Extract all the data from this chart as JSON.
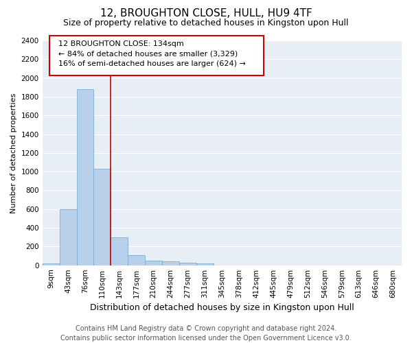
{
  "title": "12, BROUGHTON CLOSE, HULL, HU9 4TF",
  "subtitle": "Size of property relative to detached houses in Kingston upon Hull",
  "xlabel": "Distribution of detached houses by size in Kingston upon Hull",
  "ylabel": "Number of detached properties",
  "footer_line1": "Contains HM Land Registry data © Crown copyright and database right 2024.",
  "footer_line2": "Contains public sector information licensed under the Open Government Licence v3.0.",
  "categories": [
    "9sqm",
    "43sqm",
    "76sqm",
    "110sqm",
    "143sqm",
    "177sqm",
    "210sqm",
    "244sqm",
    "277sqm",
    "311sqm",
    "345sqm",
    "378sqm",
    "412sqm",
    "445sqm",
    "479sqm",
    "512sqm",
    "546sqm",
    "579sqm",
    "613sqm",
    "646sqm",
    "680sqm"
  ],
  "values": [
    20,
    600,
    1880,
    1030,
    295,
    110,
    50,
    45,
    30,
    20,
    0,
    0,
    0,
    0,
    0,
    0,
    0,
    0,
    0,
    0,
    0
  ],
  "bar_color": "#b8d0ea",
  "bar_edge_color": "#7aacd4",
  "ylim": [
    0,
    2400
  ],
  "yticks": [
    0,
    200,
    400,
    600,
    800,
    1000,
    1200,
    1400,
    1600,
    1800,
    2000,
    2200,
    2400
  ],
  "bg_color": "#e8eef6",
  "grid_color": "#ffffff",
  "red_line_color": "#cc0000",
  "box_edge_color": "#cc0000",
  "title_fontsize": 11,
  "subtitle_fontsize": 9,
  "xlabel_fontsize": 9,
  "ylabel_fontsize": 8,
  "tick_fontsize": 7.5,
  "footer_fontsize": 7,
  "annotation_text_line1": "12 BROUGHTON CLOSE: 134sqm",
  "annotation_text_line2": "← 84% of detached houses are smaller (3,329)",
  "annotation_text_line3": "16% of semi-detached houses are larger (624) →"
}
